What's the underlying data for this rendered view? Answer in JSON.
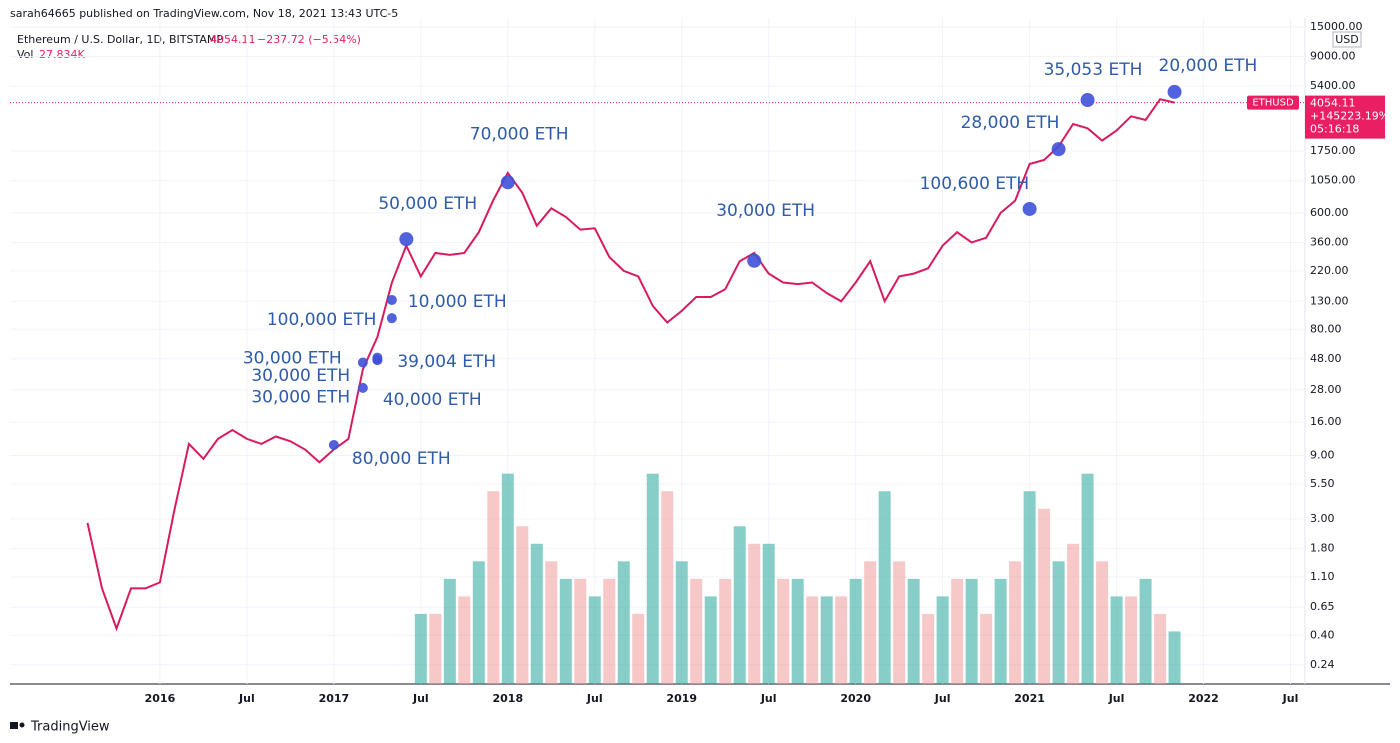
{
  "chart_data": {
    "type": "line",
    "header": "sarah64665 published on TradingView.com, Nov 18, 2021 13:43 UTC-5",
    "symbol": "Ethereum / U.S. Dollar, 1D, BITSTAMP",
    "last_price": 4054.11,
    "change": "−237.72 (−5.54%)",
    "vol_label": "Vol",
    "vol_value": "27.834K",
    "currency": "USD",
    "ticker": "ETHUSD",
    "total_change": "+145223.19%",
    "countdown": "05:16:18",
    "footer": "TradingView",
    "log_scale": true,
    "grid": true,
    "xlim": [
      "2015-03",
      "2022-08"
    ],
    "xticks": [
      {
        "value": "2016-01",
        "label": "2016"
      },
      {
        "value": "2016-07",
        "label": "Jul"
      },
      {
        "value": "2017-01",
        "label": "2017"
      },
      {
        "value": "2017-07",
        "label": "Jul"
      },
      {
        "value": "2018-01",
        "label": "2018"
      },
      {
        "value": "2018-07",
        "label": "Jul"
      },
      {
        "value": "2019-01",
        "label": "2019"
      },
      {
        "value": "2019-07",
        "label": "Jul"
      },
      {
        "value": "2020-01",
        "label": "2020"
      },
      {
        "value": "2020-07",
        "label": "Jul"
      },
      {
        "value": "2021-01",
        "label": "2021"
      },
      {
        "value": "2021-07",
        "label": "Jul"
      },
      {
        "value": "2022-01",
        "label": "2022"
      },
      {
        "value": "2022-07",
        "label": "Jul"
      }
    ],
    "ylim": [
      0.172,
      17550
    ],
    "yticks": [
      {
        "value": 15000,
        "label": "15000.00"
      },
      {
        "value": 9000,
        "label": "9000.00"
      },
      {
        "value": 5400,
        "label": "5400.00"
      },
      {
        "value": 1750,
        "label": "1750.00"
      },
      {
        "value": 1050,
        "label": "1050.00"
      },
      {
        "value": 600,
        "label": "600.00"
      },
      {
        "value": 360,
        "label": "360.00"
      },
      {
        "value": 220,
        "label": "220.00"
      },
      {
        "value": 130,
        "label": "130.00"
      },
      {
        "value": 80,
        "label": "80.00"
      },
      {
        "value": 48,
        "label": "48.00"
      },
      {
        "value": 28,
        "label": "28.00"
      },
      {
        "value": 16,
        "label": "16.00"
      },
      {
        "value": 9,
        "label": "9.00"
      },
      {
        "value": 5.5,
        "label": "5.50"
      },
      {
        "value": 3,
        "label": "3.00"
      },
      {
        "value": 1.8,
        "label": "1.80"
      },
      {
        "value": 1.1,
        "label": "1.10"
      },
      {
        "value": 0.65,
        "label": "0.65"
      },
      {
        "value": 0.4,
        "label": "0.40"
      },
      {
        "value": 0.24,
        "label": "0.24"
      }
    ],
    "x": [
      "2015-08",
      "2015-09",
      "2015-10",
      "2015-11",
      "2015-12",
      "2016-01",
      "2016-02",
      "2016-03",
      "2016-04",
      "2016-05",
      "2016-06",
      "2016-07",
      "2016-08",
      "2016-09",
      "2016-10",
      "2016-11",
      "2016-12",
      "2017-01",
      "2017-02",
      "2017-03",
      "2017-04",
      "2017-05",
      "2017-06",
      "2017-07",
      "2017-08",
      "2017-09",
      "2017-10",
      "2017-11",
      "2017-12",
      "2018-01",
      "2018-02",
      "2018-03",
      "2018-04",
      "2018-05",
      "2018-06",
      "2018-07",
      "2018-08",
      "2018-09",
      "2018-10",
      "2018-11",
      "2018-12",
      "2019-01",
      "2019-02",
      "2019-03",
      "2019-04",
      "2019-05",
      "2019-06",
      "2019-07",
      "2019-08",
      "2019-09",
      "2019-10",
      "2019-11",
      "2019-12",
      "2020-01",
      "2020-02",
      "2020-03",
      "2020-04",
      "2020-05",
      "2020-06",
      "2020-07",
      "2020-08",
      "2020-09",
      "2020-10",
      "2020-11",
      "2020-12",
      "2021-01",
      "2021-02",
      "2021-03",
      "2021-04",
      "2021-05",
      "2021-06",
      "2021-07",
      "2021-08",
      "2021-09",
      "2021-10",
      "2021-11"
    ],
    "series": [
      {
        "name": "ETHUSD",
        "color": "#d81b60",
        "values": [
          2.8,
          0.9,
          0.45,
          0.9,
          0.9,
          1.0,
          3.5,
          11,
          8.5,
          12,
          14,
          12,
          11,
          12.5,
          11.5,
          10,
          8,
          10,
          12,
          40,
          70,
          180,
          340,
          200,
          300,
          290,
          300,
          430,
          750,
          1200,
          850,
          480,
          650,
          560,
          450,
          460,
          280,
          220,
          200,
          120,
          90,
          110,
          140,
          140,
          160,
          260,
          300,
          210,
          180,
          175,
          180,
          150,
          130,
          180,
          260,
          130,
          200,
          210,
          230,
          340,
          430,
          360,
          390,
          600,
          740,
          1400,
          1500,
          1900,
          2800,
          2600,
          2100,
          2500,
          3200,
          3000,
          4300,
          4054.11
        ]
      },
      {
        "name": "Vol",
        "axis": "y2",
        "color": "#26a69a",
        "x": [
          "2017-07",
          "2017-08",
          "2017-09",
          "2017-10",
          "2017-11",
          "2017-12",
          "2018-01",
          "2018-02",
          "2018-03",
          "2018-04",
          "2018-05",
          "2018-06",
          "2018-07",
          "2018-08",
          "2018-09",
          "2018-10",
          "2018-11",
          "2018-12",
          "2019-01",
          "2019-02",
          "2019-03",
          "2019-04",
          "2019-05",
          "2019-06",
          "2019-07",
          "2019-08",
          "2019-09",
          "2019-10",
          "2019-11",
          "2019-12",
          "2020-01",
          "2020-02",
          "2020-03",
          "2020-04",
          "2020-05",
          "2020-06",
          "2020-07",
          "2020-08",
          "2020-09",
          "2020-10",
          "2020-11",
          "2020-12",
          "2021-01",
          "2021-02",
          "2021-03",
          "2021-04",
          "2021-05",
          "2021-06",
          "2021-07",
          "2021-08",
          "2021-09",
          "2021-10",
          "2021-11"
        ],
        "values": [
          40,
          40,
          60,
          50,
          70,
          110,
          120,
          90,
          80,
          70,
          60,
          60,
          50,
          60,
          70,
          40,
          120,
          110,
          70,
          60,
          50,
          60,
          90,
          80,
          80,
          60,
          60,
          50,
          50,
          50,
          60,
          70,
          110,
          70,
          60,
          40,
          50,
          60,
          60,
          40,
          60,
          70,
          110,
          100,
          70,
          80,
          120,
          70,
          50,
          50,
          60,
          40,
          30
        ]
      }
    ],
    "y2lim": [
      0,
      380
    ],
    "annotations": [
      {
        "label": "80,000 ETH",
        "x": "2017-01",
        "y": 10.8
      },
      {
        "label": "40,000 ETH",
        "x": "2017-03",
        "y": 29
      },
      {
        "label": "30,000 ETH",
        "x": "2017-03",
        "y": 45
      },
      {
        "label": "30,000 ETH",
        "x": "2017-04",
        "y": 47
      },
      {
        "label": "30,000 ETH",
        "x": "2017-04",
        "y": 49
      },
      {
        "label": "39,004 ETH",
        "x": "2017-04",
        "y": 47
      },
      {
        "label": "100,000 ETH",
        "x": "2017-05",
        "y": 97
      },
      {
        "label": "10,000 ETH",
        "x": "2017-05",
        "y": 133
      },
      {
        "label": "50,000 ETH",
        "x": "2017-06",
        "y": 381
      },
      {
        "label": "70,000 ETH",
        "x": "2018-01",
        "y": 1020
      },
      {
        "label": "30,000 ETH",
        "x": "2019-06",
        "y": 262
      },
      {
        "label": "100,600 ETH",
        "x": "2021-01",
        "y": 643
      },
      {
        "label": "28,000 ETH",
        "x": "2021-03",
        "y": 1810
      },
      {
        "label": "35,053 ETH",
        "x": "2021-05",
        "y": 4240
      },
      {
        "label": "20,000 ETH",
        "x": "2021-11",
        "y": 4880
      }
    ]
  }
}
